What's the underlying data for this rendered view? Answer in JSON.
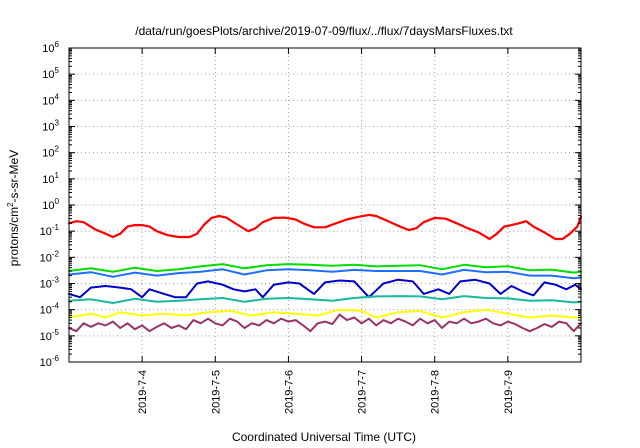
{
  "chart_data": {
    "type": "line",
    "title": "/data/run/goesPlots/archive/2019-07-09/flux/../flux/7daysMarsFluxes.txt",
    "xlabel": "Coordinated Universal Time (UTC)",
    "ylabel_parts": [
      "protons/cm",
      "2",
      "-s-sr-MeV"
    ],
    "y_scale": "log",
    "ylim": [
      1e-06,
      1000000.0
    ],
    "xlim": [
      "2019-07-03 00:00",
      "2019-07-10 00:00"
    ],
    "y_ticks": [
      {
        "value": 1e-06,
        "exp": "-6"
      },
      {
        "value": 1e-05,
        "exp": "-5"
      },
      {
        "value": 0.0001,
        "exp": "-4"
      },
      {
        "value": 0.001,
        "exp": "-3"
      },
      {
        "value": 0.01,
        "exp": "-2"
      },
      {
        "value": 0.1,
        "exp": "-1"
      },
      {
        "value": 1,
        "exp": "0"
      },
      {
        "value": 10,
        "exp": "1"
      },
      {
        "value": 100,
        "exp": "2"
      },
      {
        "value": 1000,
        "exp": "3"
      },
      {
        "value": 10000,
        "exp": "4"
      },
      {
        "value": 100000,
        "exp": "5"
      },
      {
        "value": 1000000,
        "exp": "6"
      }
    ],
    "y_tick_base": "10",
    "x_ticks": [
      {
        "label": "2019-7-4",
        "day": 1
      },
      {
        "label": "2019-7-5",
        "day": 2
      },
      {
        "label": "2019-7-6",
        "day": 3
      },
      {
        "label": "2019-7-7",
        "day": 4
      },
      {
        "label": "2019-7-8",
        "day": 5
      },
      {
        "label": "2019-7-9",
        "day": 6
      }
    ],
    "grid": true,
    "x_unit": "days since 2019-07-03 00:00 UTC",
    "series": [
      {
        "color": "#ff0000",
        "width": 2.2,
        "points": [
          [
            0,
            0.2
          ],
          [
            0.1,
            0.24
          ],
          [
            0.2,
            0.22
          ],
          [
            0.35,
            0.12
          ],
          [
            0.5,
            0.08
          ],
          [
            0.6,
            0.06
          ],
          [
            0.7,
            0.08
          ],
          [
            0.8,
            0.15
          ],
          [
            0.9,
            0.17
          ],
          [
            1.0,
            0.17
          ],
          [
            1.1,
            0.15
          ],
          [
            1.2,
            0.1
          ],
          [
            1.35,
            0.07
          ],
          [
            1.5,
            0.06
          ],
          [
            1.65,
            0.06
          ],
          [
            1.75,
            0.08
          ],
          [
            1.85,
            0.18
          ],
          [
            1.95,
            0.32
          ],
          [
            2.05,
            0.38
          ],
          [
            2.15,
            0.33
          ],
          [
            2.3,
            0.18
          ],
          [
            2.45,
            0.1
          ],
          [
            2.55,
            0.13
          ],
          [
            2.65,
            0.22
          ],
          [
            2.8,
            0.32
          ],
          [
            2.95,
            0.33
          ],
          [
            3.1,
            0.28
          ],
          [
            3.2,
            0.2
          ],
          [
            3.35,
            0.14
          ],
          [
            3.5,
            0.14
          ],
          [
            3.65,
            0.2
          ],
          [
            3.8,
            0.28
          ],
          [
            3.95,
            0.35
          ],
          [
            4.1,
            0.42
          ],
          [
            4.2,
            0.38
          ],
          [
            4.35,
            0.25
          ],
          [
            4.5,
            0.16
          ],
          [
            4.65,
            0.11
          ],
          [
            4.75,
            0.13
          ],
          [
            4.85,
            0.22
          ],
          [
            5.0,
            0.32
          ],
          [
            5.15,
            0.3
          ],
          [
            5.3,
            0.2
          ],
          [
            5.45,
            0.13
          ],
          [
            5.6,
            0.09
          ],
          [
            5.75,
            0.05
          ],
          [
            5.85,
            0.08
          ],
          [
            5.95,
            0.15
          ],
          [
            6.05,
            0.17
          ],
          [
            6.15,
            0.2
          ],
          [
            6.25,
            0.24
          ],
          [
            6.35,
            0.15
          ],
          [
            6.5,
            0.09
          ],
          [
            6.65,
            0.05
          ],
          [
            6.75,
            0.05
          ],
          [
            6.85,
            0.08
          ],
          [
            6.95,
            0.15
          ],
          [
            7.0,
            0.35
          ]
        ]
      },
      {
        "color": "#00dd00",
        "width": 2,
        "points": [
          [
            0,
            0.003
          ],
          [
            0.3,
            0.0038
          ],
          [
            0.6,
            0.0028
          ],
          [
            0.9,
            0.004
          ],
          [
            1.2,
            0.003
          ],
          [
            1.5,
            0.0035
          ],
          [
            1.8,
            0.0045
          ],
          [
            2.1,
            0.0055
          ],
          [
            2.4,
            0.0038
          ],
          [
            2.7,
            0.005
          ],
          [
            3.0,
            0.0055
          ],
          [
            3.3,
            0.0052
          ],
          [
            3.6,
            0.0048
          ],
          [
            3.9,
            0.0052
          ],
          [
            4.2,
            0.0045
          ],
          [
            4.5,
            0.0048
          ],
          [
            4.8,
            0.005
          ],
          [
            5.1,
            0.0035
          ],
          [
            5.4,
            0.0052
          ],
          [
            5.7,
            0.0042
          ],
          [
            6.0,
            0.0046
          ],
          [
            6.3,
            0.0032
          ],
          [
            6.6,
            0.0034
          ],
          [
            6.9,
            0.0026
          ],
          [
            7.0,
            0.0028
          ]
        ]
      },
      {
        "color": "#1f6fff",
        "width": 2,
        "points": [
          [
            0,
            0.0022
          ],
          [
            0.3,
            0.0027
          ],
          [
            0.6,
            0.0018
          ],
          [
            0.9,
            0.0026
          ],
          [
            1.2,
            0.002
          ],
          [
            1.5,
            0.0025
          ],
          [
            1.8,
            0.0028
          ],
          [
            2.1,
            0.0035
          ],
          [
            2.4,
            0.0022
          ],
          [
            2.7,
            0.0032
          ],
          [
            3.0,
            0.0035
          ],
          [
            3.3,
            0.0032
          ],
          [
            3.6,
            0.0028
          ],
          [
            3.9,
            0.0033
          ],
          [
            4.2,
            0.003
          ],
          [
            4.5,
            0.003
          ],
          [
            4.8,
            0.003
          ],
          [
            5.1,
            0.0022
          ],
          [
            5.4,
            0.0033
          ],
          [
            5.7,
            0.0027
          ],
          [
            6.0,
            0.0028
          ],
          [
            6.3,
            0.002
          ],
          [
            6.6,
            0.002
          ],
          [
            6.9,
            0.0016
          ],
          [
            7.0,
            0.0017
          ]
        ]
      },
      {
        "color": "#0000cc",
        "width": 2,
        "points": [
          [
            0,
            0.0004
          ],
          [
            0.15,
            0.0003
          ],
          [
            0.3,
            0.0007
          ],
          [
            0.5,
            0.0008
          ],
          [
            0.7,
            0.0007
          ],
          [
            0.85,
            0.0006
          ],
          [
            1.0,
            0.0003
          ],
          [
            1.1,
            0.0006
          ],
          [
            1.3,
            0.0004
          ],
          [
            1.45,
            0.0003
          ],
          [
            1.6,
            0.0003
          ],
          [
            1.75,
            0.001
          ],
          [
            1.9,
            0.0012
          ],
          [
            2.1,
            0.0009
          ],
          [
            2.25,
            0.0006
          ],
          [
            2.4,
            0.0005
          ],
          [
            2.55,
            0.0006
          ],
          [
            2.65,
            0.0003
          ],
          [
            2.8,
            0.0009
          ],
          [
            3.0,
            0.0011
          ],
          [
            3.15,
            0.001
          ],
          [
            3.35,
            0.0004
          ],
          [
            3.5,
            0.0011
          ],
          [
            3.7,
            0.0013
          ],
          [
            3.9,
            0.0012
          ],
          [
            4.1,
            0.0003
          ],
          [
            4.3,
            0.001
          ],
          [
            4.5,
            0.0014
          ],
          [
            4.7,
            0.0012
          ],
          [
            4.85,
            0.0004
          ],
          [
            5.05,
            0.0006
          ],
          [
            5.2,
            0.0004
          ],
          [
            5.35,
            0.0012
          ],
          [
            5.55,
            0.0014
          ],
          [
            5.75,
            0.001
          ],
          [
            5.9,
            0.0004
          ],
          [
            6.05,
            0.0008
          ],
          [
            6.2,
            0.0005
          ],
          [
            6.35,
            0.00035
          ],
          [
            6.5,
            0.0011
          ],
          [
            6.65,
            0.0009
          ],
          [
            6.8,
            0.0006
          ],
          [
            6.92,
            0.0009
          ],
          [
            7.0,
            0.0006
          ]
        ]
      },
      {
        "color": "#19b8a0",
        "width": 2,
        "points": [
          [
            0,
            0.00022
          ],
          [
            0.3,
            0.00025
          ],
          [
            0.6,
            0.00018
          ],
          [
            0.9,
            0.00026
          ],
          [
            1.2,
            0.0002
          ],
          [
            1.5,
            0.00022
          ],
          [
            1.8,
            0.00025
          ],
          [
            2.1,
            0.00028
          ],
          [
            2.4,
            0.0002
          ],
          [
            2.7,
            0.00026
          ],
          [
            3.0,
            0.00028
          ],
          [
            3.3,
            0.00025
          ],
          [
            3.6,
            0.00022
          ],
          [
            3.9,
            0.00028
          ],
          [
            4.2,
            0.00032
          ],
          [
            4.5,
            0.00033
          ],
          [
            4.8,
            0.00032
          ],
          [
            5.1,
            0.00025
          ],
          [
            5.4,
            0.00033
          ],
          [
            5.7,
            0.00028
          ],
          [
            6.0,
            0.00027
          ],
          [
            6.3,
            0.00022
          ],
          [
            6.6,
            0.00023
          ],
          [
            6.9,
            0.00019
          ],
          [
            7.0,
            0.0002
          ]
        ]
      },
      {
        "color": "#ffff00",
        "width": 2,
        "points": [
          [
            0,
            5e-05
          ],
          [
            0.3,
            7e-05
          ],
          [
            0.5,
            5e-05
          ],
          [
            0.7,
            8e-05
          ],
          [
            1.0,
            6e-05
          ],
          [
            1.3,
            7e-05
          ],
          [
            1.6,
            6e-05
          ],
          [
            1.9,
            8e-05
          ],
          [
            2.2,
            9e-05
          ],
          [
            2.5,
            6e-05
          ],
          [
            2.8,
            8e-05
          ],
          [
            3.1,
            7e-05
          ],
          [
            3.4,
            6e-05
          ],
          [
            3.7,
            0.0001
          ],
          [
            4.0,
            9e-05
          ],
          [
            4.2,
            5e-05
          ],
          [
            4.5,
            8e-05
          ],
          [
            4.8,
            9e-05
          ],
          [
            5.1,
            5e-05
          ],
          [
            5.4,
            8e-05
          ],
          [
            5.7,
            0.0001
          ],
          [
            6.0,
            7e-05
          ],
          [
            6.3,
            5e-05
          ],
          [
            6.6,
            6e-05
          ],
          [
            6.9,
            5e-05
          ],
          [
            7.0,
            5e-05
          ]
        ]
      },
      {
        "color": "#993366",
        "width": 2,
        "points": [
          [
            0,
            2e-05
          ],
          [
            0.1,
            1.5e-05
          ],
          [
            0.2,
            3e-05
          ],
          [
            0.3,
            2.2e-05
          ],
          [
            0.4,
            3e-05
          ],
          [
            0.5,
            2.5e-05
          ],
          [
            0.6,
            3.5e-05
          ],
          [
            0.7,
            2e-05
          ],
          [
            0.8,
            3e-05
          ],
          [
            0.9,
            1.8e-05
          ],
          [
            1.0,
            2.5e-05
          ],
          [
            1.1,
            1.5e-05
          ],
          [
            1.2,
            2.2e-05
          ],
          [
            1.3,
            3e-05
          ],
          [
            1.4,
            2e-05
          ],
          [
            1.5,
            2.5e-05
          ],
          [
            1.6,
            1.8e-05
          ],
          [
            1.7,
            4e-05
          ],
          [
            1.8,
            3e-05
          ],
          [
            1.9,
            4.5e-05
          ],
          [
            2.0,
            3e-05
          ],
          [
            2.1,
            2.5e-05
          ],
          [
            2.2,
            4.5e-05
          ],
          [
            2.3,
            3.5e-05
          ],
          [
            2.4,
            2e-05
          ],
          [
            2.5,
            3e-05
          ],
          [
            2.6,
            2.5e-05
          ],
          [
            2.7,
            4e-05
          ],
          [
            2.8,
            3e-05
          ],
          [
            2.9,
            4.5e-05
          ],
          [
            3.0,
            3.5e-05
          ],
          [
            3.1,
            4e-05
          ],
          [
            3.2,
            2.5e-05
          ],
          [
            3.3,
            1.5e-05
          ],
          [
            3.4,
            3e-05
          ],
          [
            3.5,
            3.5e-05
          ],
          [
            3.6,
            2.8e-05
          ],
          [
            3.7,
            6.5e-05
          ],
          [
            3.8,
            4e-05
          ],
          [
            3.9,
            5e-05
          ],
          [
            4.0,
            3e-05
          ],
          [
            4.1,
            4.5e-05
          ],
          [
            4.2,
            2.5e-05
          ],
          [
            4.3,
            4e-05
          ],
          [
            4.4,
            3e-05
          ],
          [
            4.5,
            4.5e-05
          ],
          [
            4.6,
            3.5e-05
          ],
          [
            4.7,
            2.5e-05
          ],
          [
            4.8,
            4.5e-05
          ],
          [
            4.9,
            3e-05
          ],
          [
            5.0,
            4e-05
          ],
          [
            5.1,
            2e-05
          ],
          [
            5.2,
            3.5e-05
          ],
          [
            5.3,
            3e-05
          ],
          [
            5.4,
            4.5e-05
          ],
          [
            5.5,
            3e-05
          ],
          [
            5.6,
            3.5e-05
          ],
          [
            5.7,
            4.5e-05
          ],
          [
            5.8,
            3e-05
          ],
          [
            5.9,
            2.5e-05
          ],
          [
            6.0,
            3.5e-05
          ],
          [
            6.1,
            2.8e-05
          ],
          [
            6.2,
            2e-05
          ],
          [
            6.3,
            1.5e-05
          ],
          [
            6.4,
            2e-05
          ],
          [
            6.5,
            2.8e-05
          ],
          [
            6.6,
            2.2e-05
          ],
          [
            6.7,
            3.5e-05
          ],
          [
            6.8,
            3e-05
          ],
          [
            6.9,
            1.5e-05
          ],
          [
            7.0,
            3e-05
          ]
        ]
      }
    ]
  }
}
